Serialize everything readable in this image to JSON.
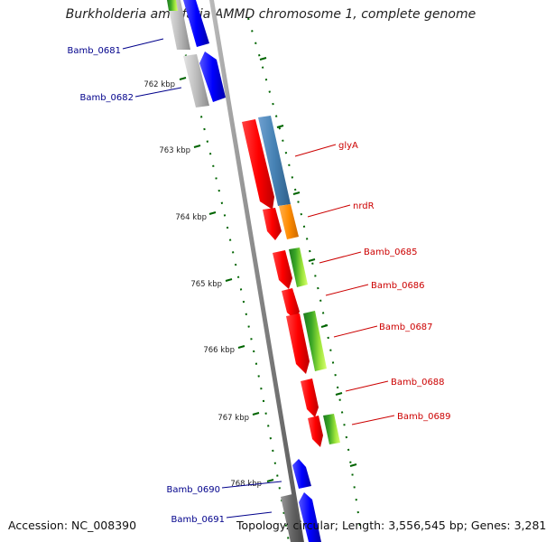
{
  "title": "Burkholderia ambifaria AMMD chromosome 1, complete genome",
  "footer": {
    "accession": "Accession: NC_008390",
    "topology": "Topology: circular",
    "length": "Length: 3,556,545 bp",
    "genes": "Genes: 3,281"
  },
  "colors": {
    "forward_gene": "#0000ff",
    "reverse_gene": "#ff0000",
    "gray_feature": "#bbbbbb",
    "dark_gray_feature": "#777777",
    "glyA_feature": "#4682b4",
    "nrdR_feature": "#ff8c00",
    "green_feature": "#7ccd00",
    "tick": "#006400",
    "label_forward": "#00008b",
    "label_reverse": "#cc0000",
    "backbone": "#888888"
  },
  "ticks": [
    "762 kbp",
    "763 kbp",
    "764 kbp",
    "765 kbp",
    "766 kbp",
    "767 kbp",
    "768 kbp"
  ],
  "labels": {
    "left": [
      "Bamb_0681",
      "Bamb_0682",
      "Bamb_0690",
      "Bamb_0691"
    ],
    "right": [
      "glyA",
      "nrdR",
      "Bamb_0685",
      "Bamb_0686",
      "Bamb_0687",
      "Bamb_0688",
      "Bamb_0689"
    ]
  }
}
